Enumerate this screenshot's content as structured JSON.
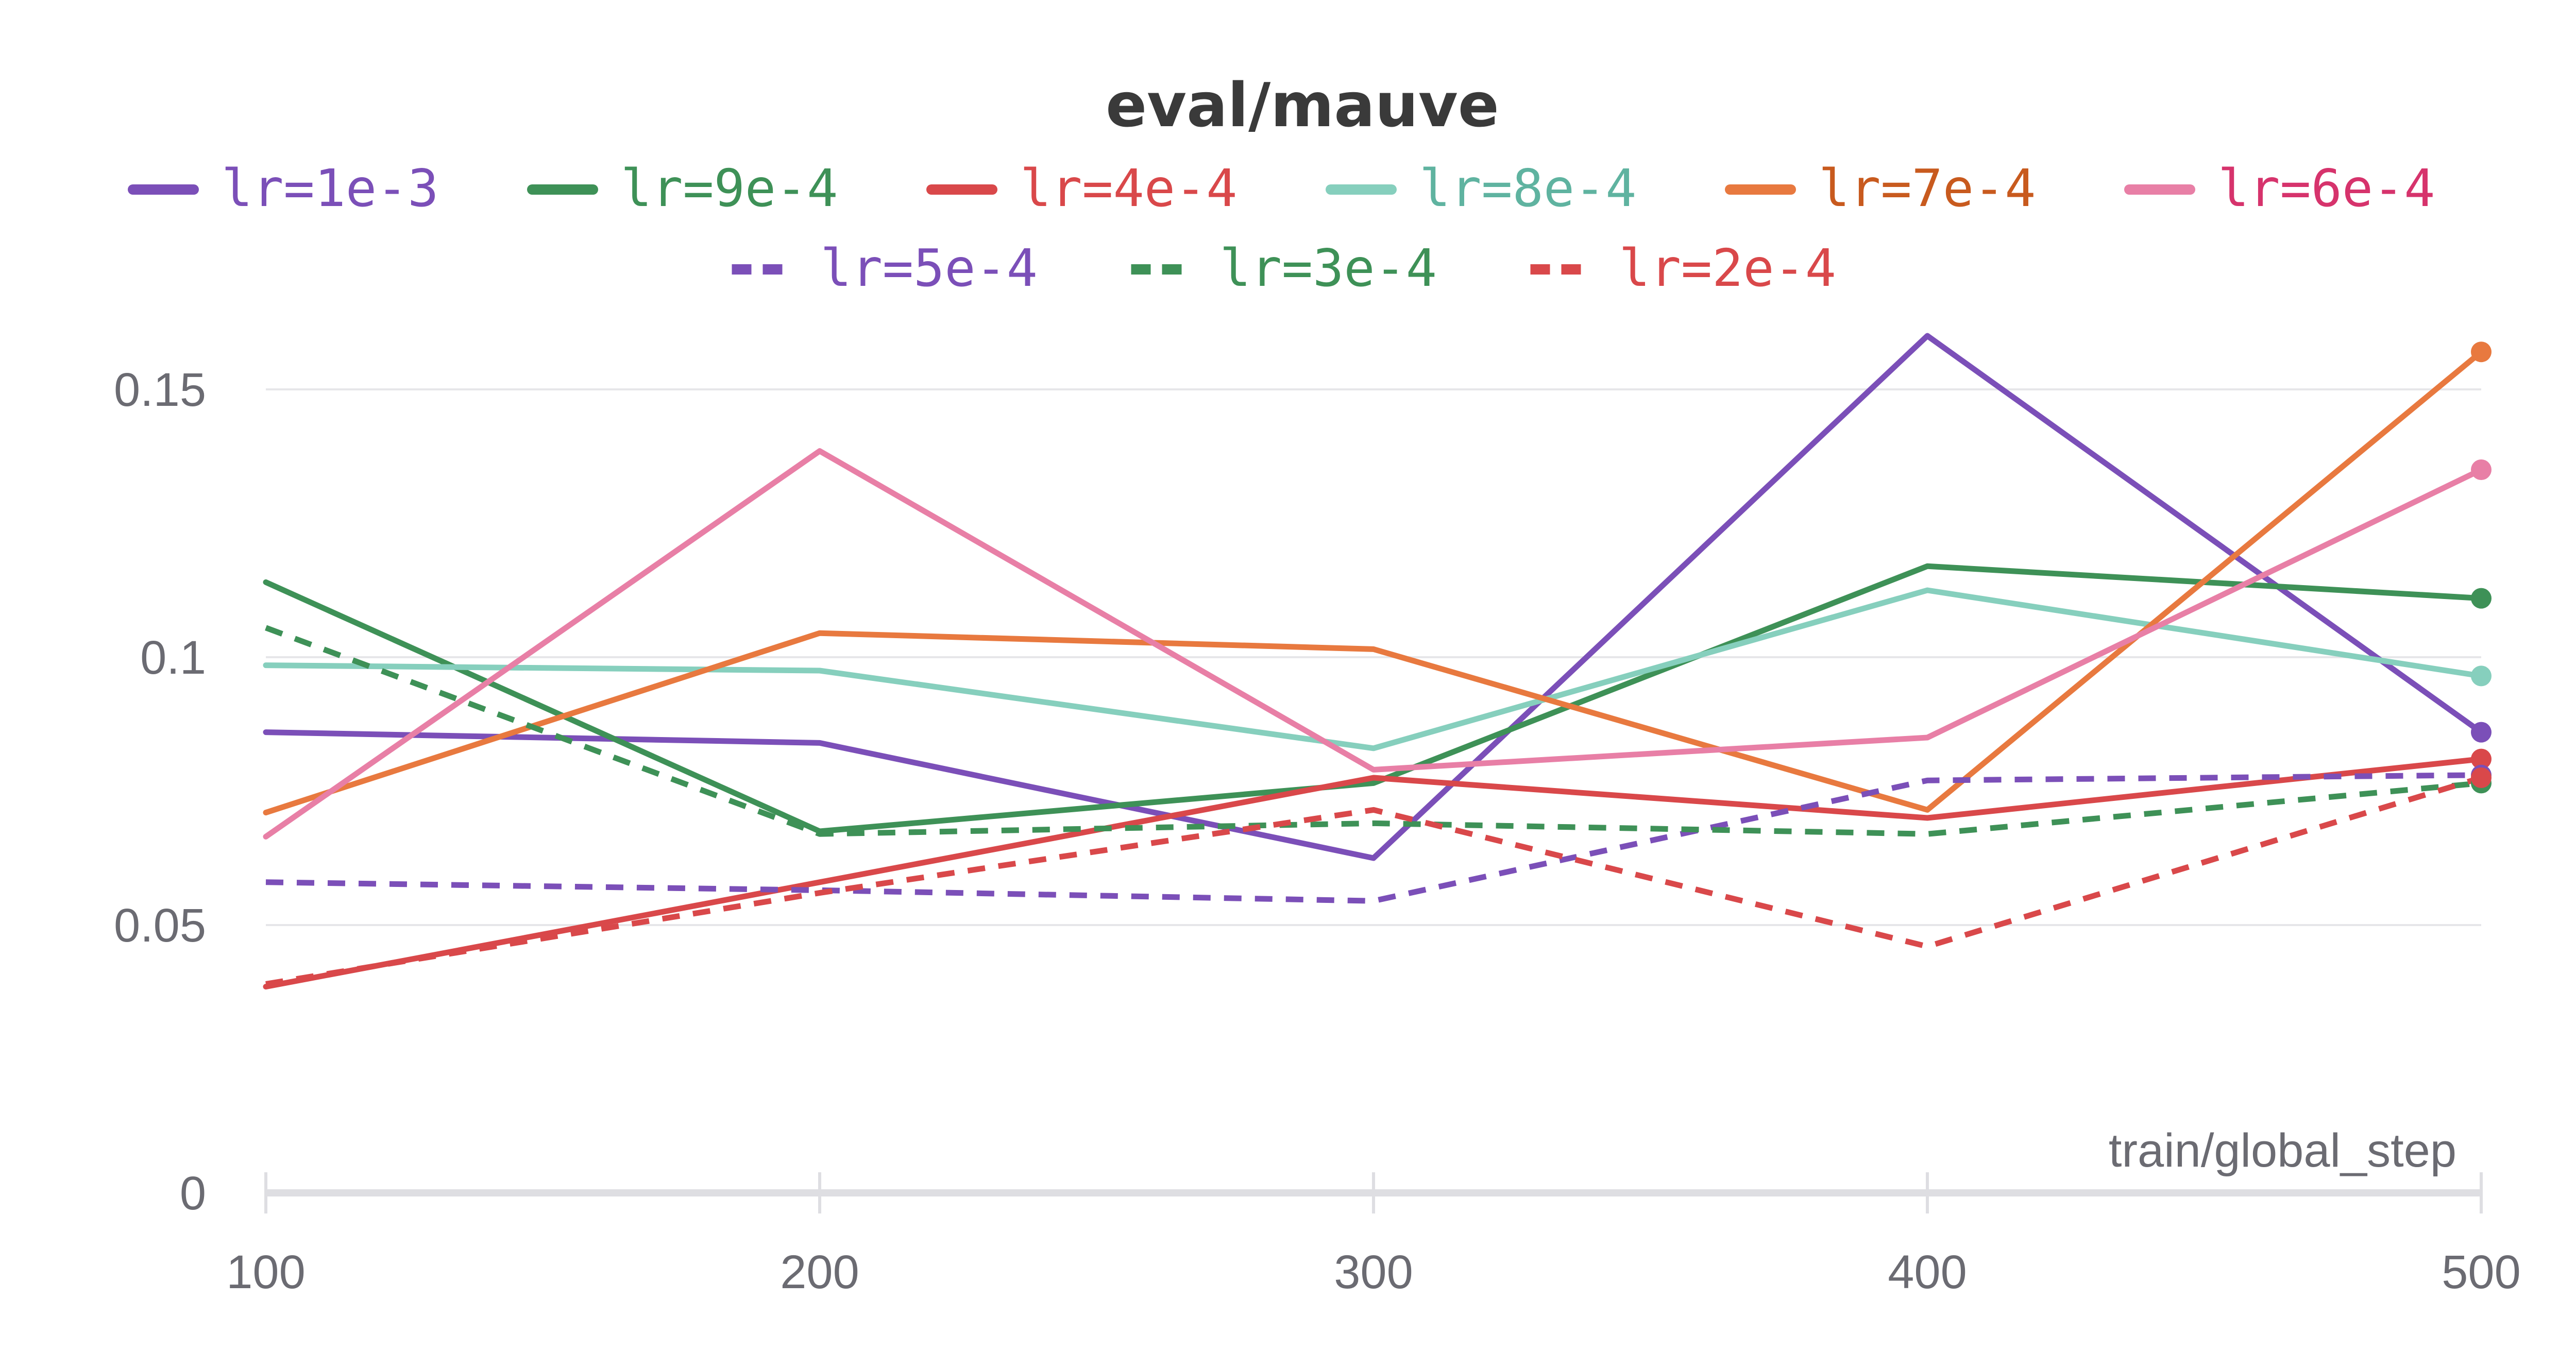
{
  "chart_data": {
    "type": "line",
    "title": "eval/mauve",
    "xlabel": "train/global_step",
    "ylabel": "",
    "x": [
      100,
      200,
      300,
      400,
      500
    ],
    "xlim": [
      100,
      500
    ],
    "ylim": [
      0,
      0.165
    ],
    "xticks": [
      100,
      200,
      300,
      400,
      500
    ],
    "xtick_labels": [
      "100",
      "200",
      "300",
      "400",
      "500"
    ],
    "yticks": [
      0,
      0.05,
      0.1,
      0.15
    ],
    "ytick_labels": [
      "0",
      "0.05",
      "0.1",
      "0.15"
    ],
    "grid": true,
    "legend_position": "top",
    "series": [
      {
        "name": "lr=1e-3",
        "color": "#7b4fb8",
        "text_color": "#7b4fb8",
        "dashed": false,
        "values": [
          0.086,
          0.084,
          0.0625,
          0.16,
          0.086
        ]
      },
      {
        "name": "lr=9e-4",
        "color": "#3e9157",
        "text_color": "#3e9157",
        "dashed": false,
        "values": [
          0.114,
          0.0675,
          0.0765,
          0.117,
          0.111
        ]
      },
      {
        "name": "lr=4e-4",
        "color": "#d9484a",
        "text_color": "#d9484a",
        "dashed": false,
        "values": [
          0.0385,
          0.058,
          0.0775,
          0.07,
          0.081
        ]
      },
      {
        "name": "lr=8e-4",
        "color": "#86cfbd",
        "text_color": "#5fb3a0",
        "dashed": false,
        "values": [
          0.0985,
          0.0975,
          0.083,
          0.1125,
          0.0965
        ]
      },
      {
        "name": "lr=7e-4",
        "color": "#e8793f",
        "text_color": "#c85a1e",
        "dashed": false,
        "values": [
          0.071,
          0.1045,
          0.1015,
          0.0715,
          0.157
        ]
      },
      {
        "name": "lr=6e-4",
        "color": "#e87fa6",
        "text_color": "#d6336c",
        "dashed": false,
        "values": [
          0.0665,
          0.1385,
          0.079,
          0.085,
          0.135
        ]
      },
      {
        "name": "lr=5e-4",
        "color": "#7b4fb8",
        "text_color": "#7b4fb8",
        "dashed": true,
        "values": [
          0.058,
          0.0565,
          0.0545,
          0.077,
          0.078
        ]
      },
      {
        "name": "lr=3e-4",
        "color": "#3e9157",
        "text_color": "#3e9157",
        "dashed": true,
        "values": [
          0.1055,
          0.067,
          0.069,
          0.067,
          0.0765
        ]
      },
      {
        "name": "lr=2e-4",
        "color": "#d9484a",
        "text_color": "#d9484a",
        "dashed": true,
        "values": [
          0.039,
          0.056,
          0.0715,
          0.046,
          0.0775
        ]
      }
    ]
  }
}
